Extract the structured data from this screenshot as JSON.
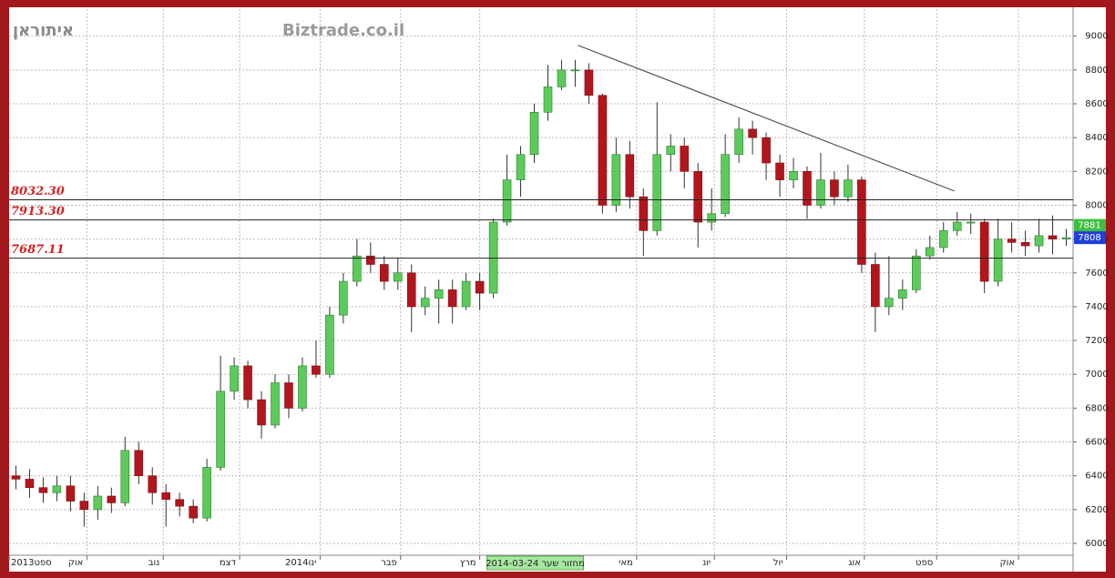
{
  "chart_data": {
    "type": "candlestick",
    "title": "איתוראן",
    "watermark": "Biztrade.co.il",
    "xlim": [
      -0.5,
      77.5
    ],
    "xticks": [
      {
        "value": -0.5,
        "label": "2013ספט"
      },
      {
        "value": 5.2,
        "label": "אוק"
      },
      {
        "value": 10.8,
        "label": "נוב"
      },
      {
        "value": 16.4,
        "label": "דצמ"
      },
      {
        "value": 22.3,
        "label": "2014ינו"
      },
      {
        "value": 28.2,
        "label": "פבר"
      },
      {
        "value": 34,
        "label": "מרץ"
      },
      {
        "value": 45.5,
        "label": "מאי"
      },
      {
        "value": 51.2,
        "label": "יונ"
      },
      {
        "value": 56.5,
        "label": "יול"
      },
      {
        "value": 62.2,
        "label": "אוג"
      },
      {
        "value": 67.5,
        "label": "ספט"
      },
      {
        "value": 73.5,
        "label": "אוק"
      }
    ],
    "cursor_label": "2014-03-24 מחזור שער",
    "ylim": [
      5930,
      9160
    ],
    "yticks": [
      6000,
      6200,
      6400,
      6600,
      6800,
      7000,
      7200,
      7400,
      7600,
      7800,
      8000,
      8200,
      8400,
      8600,
      8800,
      9000
    ],
    "grid": true,
    "up_color": "#5ccb5c",
    "down_color": "#b2161c",
    "open": [
      6400,
      6380,
      6330,
      6300,
      6340,
      6250,
      6200,
      6280,
      6240,
      6550,
      6400,
      6300,
      6260,
      6220,
      6150,
      6450,
      6900,
      7050,
      6850,
      6700,
      6950,
      6800,
      7050,
      7000,
      7350,
      7550,
      7700,
      7650,
      7550,
      7600,
      7400,
      7450,
      7500,
      7400,
      7550,
      7480,
      7900,
      8150,
      8300,
      8550,
      8700,
      8800,
      8800,
      8650,
      8000,
      8300,
      8050,
      7850,
      8300,
      8350,
      8200,
      7900,
      7950,
      8300,
      8450,
      8400,
      8250,
      8150,
      8200,
      8000,
      8150,
      8050,
      8150,
      7650,
      7400,
      7450,
      7500,
      7700,
      7750,
      7850,
      7900,
      7900,
      7550,
      7800,
      7780,
      7760,
      7820,
      7800
    ],
    "high": [
      6460,
      6440,
      6390,
      6400,
      6400,
      6300,
      6340,
      6330,
      6630,
      6600,
      6450,
      6350,
      6300,
      6260,
      6500,
      7110,
      7100,
      7080,
      6900,
      7000,
      7000,
      7100,
      7200,
      7400,
      7600,
      7800,
      7780,
      7700,
      7690,
      7650,
      7520,
      7560,
      7560,
      7600,
      7600,
      7920,
      8300,
      8350,
      8600,
      8830,
      8860,
      8860,
      8840,
      8660,
      8400,
      8380,
      8100,
      8610,
      8420,
      8400,
      8250,
      8100,
      8420,
      8520,
      8500,
      8430,
      8300,
      8280,
      8230,
      8310,
      8200,
      8240,
      8170,
      7720,
      7700,
      7560,
      7740,
      7820,
      7900,
      7960,
      7950,
      7920,
      7920,
      7900,
      7850,
      7920,
      7940,
      7860
    ],
    "low": [
      6320,
      6270,
      6240,
      6250,
      6190,
      6100,
      6140,
      6180,
      6220,
      6350,
      6230,
      6100,
      6160,
      6120,
      6130,
      6430,
      6850,
      6800,
      6620,
      6680,
      6740,
      6780,
      6980,
      6980,
      7300,
      7520,
      7600,
      7500,
      7500,
      7250,
      7350,
      7300,
      7300,
      7380,
      7380,
      7450,
      7880,
      8050,
      8250,
      8500,
      8680,
      8700,
      8600,
      7950,
      7960,
      7980,
      7700,
      7820,
      8200,
      8100,
      7750,
      7850,
      7930,
      8250,
      8300,
      8150,
      8050,
      8100,
      7920,
      7980,
      8000,
      8020,
      7600,
      7250,
      7350,
      7380,
      7480,
      7680,
      7720,
      7820,
      7830,
      7480,
      7520,
      7720,
      7700,
      7720,
      7710,
      7760
    ],
    "close": [
      6380,
      6330,
      6300,
      6340,
      6250,
      6200,
      6280,
      6240,
      6550,
      6400,
      6300,
      6260,
      6220,
      6150,
      6450,
      6900,
      7050,
      6850,
      6700,
      6950,
      6800,
      7050,
      7000,
      7350,
      7550,
      7700,
      7650,
      7550,
      7600,
      7400,
      7450,
      7500,
      7400,
      7550,
      7480,
      7900,
      8150,
      8300,
      8550,
      8700,
      8800,
      8800,
      8650,
      8000,
      8300,
      8050,
      7850,
      8300,
      8350,
      8200,
      7900,
      7950,
      8300,
      8450,
      8400,
      8250,
      8150,
      8200,
      8000,
      8150,
      8050,
      8150,
      7650,
      7400,
      7450,
      7500,
      7700,
      7750,
      7850,
      7900,
      7900,
      7550,
      7800,
      7780,
      7760,
      7820,
      7800,
      7808
    ],
    "hlines": [
      {
        "value": 8032.3,
        "label": "8032.30"
      },
      {
        "value": 7913.3,
        "label": "7913.30"
      },
      {
        "value": 7687.11,
        "label": "7687.11"
      }
    ],
    "trendline": {
      "x": [
        41.2,
        68.8
      ],
      "y": [
        8946,
        8084
      ],
      "color": "#555555"
    },
    "price_markers": [
      {
        "value": 7881,
        "color": "#3fbf3f"
      },
      {
        "value": 7808,
        "color": "#1f3fd8"
      }
    ]
  }
}
